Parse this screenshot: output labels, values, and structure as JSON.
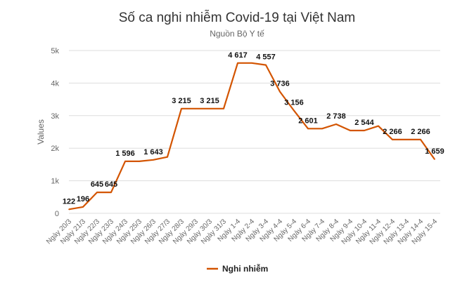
{
  "chart_data": {
    "type": "line",
    "title": "Số ca nghi nhiễm Covid-19 tại Việt Nam",
    "subtitle": "Nguồn Bộ Y tế",
    "ylabel": "Values",
    "xlabel": "",
    "ylim": [
      0,
      5000
    ],
    "yticks": [
      0,
      1000,
      2000,
      3000,
      4000,
      5000
    ],
    "ytick_labels": [
      "0",
      "1k",
      "2k",
      "3k",
      "4k",
      "5k"
    ],
    "grid": true,
    "legend_position": "bottom",
    "categories": [
      "Ngày 20/3",
      "Ngày 21/3",
      "Ngày 22/3",
      "Ngày 23/3",
      "Ngày 24/3",
      "Ngày 25/3",
      "Ngày 26/3",
      "Ngày 27/3",
      "Ngày 28/3",
      "Ngày 29/3",
      "Ngày 30/3",
      "Ngày 31/3",
      "Ngày 1-4",
      "Ngày 2-4",
      "Ngày 3-4",
      "Ngày 4-4",
      "Ngày 5-4",
      "Ngày 6-4",
      "Ngày 7-4",
      "Ngày 8-4",
      "Ngày 9-4",
      "Ngày 10-4",
      "Ngày 11-4",
      "Ngày 12-4",
      "Ngày 13-4",
      "Ngày 14-4",
      "Ngày 15-4"
    ],
    "series": [
      {
        "name": "Nghi nhiễm",
        "color": "#d35400",
        "values": [
          122,
          196,
          645,
          645,
          1596,
          1596,
          1643,
          1730,
          3215,
          3215,
          3215,
          3215,
          4617,
          4617,
          4557,
          3736,
          3156,
          2601,
          2601,
          2738,
          2544,
          2544,
          2680,
          2266,
          2266,
          2266,
          1659
        ]
      }
    ],
    "data_labels": [
      {
        "index": 0,
        "text": "122"
      },
      {
        "index": 1,
        "text": "196"
      },
      {
        "index": 2,
        "text": "645"
      },
      {
        "index": 3,
        "text": "645"
      },
      {
        "index": 4,
        "text": "1 596"
      },
      {
        "index": 6,
        "text": "1 643"
      },
      {
        "index": 8,
        "text": "3 215"
      },
      {
        "index": 10,
        "text": "3 215"
      },
      {
        "index": 12,
        "text": "4 617"
      },
      {
        "index": 14,
        "text": "4 557"
      },
      {
        "index": 15,
        "text": "3 736"
      },
      {
        "index": 16,
        "text": "3 156"
      },
      {
        "index": 17,
        "text": "2 601"
      },
      {
        "index": 19,
        "text": "2 738"
      },
      {
        "index": 21,
        "text": "2 544"
      },
      {
        "index": 23,
        "text": "2 266"
      },
      {
        "index": 25,
        "text": "2 266"
      },
      {
        "index": 26,
        "text": "1 659"
      }
    ]
  }
}
